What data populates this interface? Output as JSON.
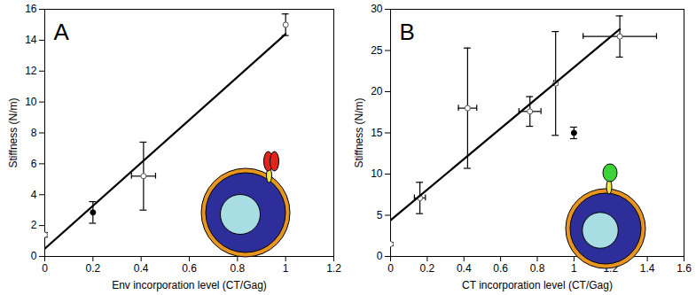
{
  "chart_data": [
    {
      "type": "scatter",
      "title": "A",
      "x_label": "Env incorporation level (CT/Gag)",
      "y_label": "Stiffness (N/m)",
      "xlim": [
        0,
        1.2
      ],
      "xticks": [
        0,
        0.2,
        0.4,
        0.6,
        0.8,
        1,
        1.2
      ],
      "ylim": [
        0,
        16
      ],
      "yticks": [
        0,
        2,
        4,
        6,
        8,
        10,
        12,
        14,
        16
      ],
      "grid": false,
      "series": [
        {
          "type": "scatter",
          "marker": "open_circle",
          "color": "#555555",
          "x": [
            0,
            0.41,
            1.0
          ],
          "y": [
            1.4,
            5.2,
            15.0
          ],
          "xerr": [
            0,
            0.05,
            0
          ],
          "yerr": [
            0.15,
            2.2,
            0.7
          ]
        },
        {
          "type": "scatter",
          "marker": "filled_circle",
          "color": "#000000",
          "x": [
            0.2
          ],
          "y": [
            2.85
          ],
          "xerr": [
            0
          ],
          "yerr": [
            0.7
          ]
        },
        {
          "type": "line",
          "color": "#000000",
          "x": [
            0,
            1.0
          ],
          "y": [
            0.5,
            14.4
          ]
        }
      ]
    },
    {
      "type": "scatter",
      "title": "B",
      "x_label": "CT incorporation level (CT/Gag)",
      "y_label": "Stiffness (N/m)",
      "xlim": [
        0,
        1.6
      ],
      "xticks": [
        0,
        0.2,
        0.4,
        0.6,
        0.8,
        1,
        1.2,
        1.4,
        1.6
      ],
      "ylim": [
        0,
        30
      ],
      "yticks": [
        0,
        5,
        10,
        15,
        20,
        25,
        30
      ],
      "grid": false,
      "series": [
        {
          "type": "scatter",
          "marker": "open_circle",
          "color": "#555555",
          "x": [
            0,
            0.16,
            0.42,
            0.76,
            0.9,
            1.25
          ],
          "y": [
            1.5,
            7.1,
            18.0,
            17.6,
            21.0,
            26.7
          ],
          "xerr": [
            0,
            0.03,
            0.05,
            0.06,
            0.01,
            0.2
          ],
          "yerr": [
            0.2,
            1.9,
            7.3,
            1.8,
            6.3,
            2.5
          ]
        },
        {
          "type": "scatter",
          "marker": "filled_circle",
          "color": "#000000",
          "x": [
            1.0
          ],
          "y": [
            15.0
          ],
          "xerr": [
            0
          ],
          "yerr": [
            0.7
          ]
        },
        {
          "type": "line",
          "color": "#000000",
          "x": [
            0,
            1.25
          ],
          "y": [
            4.4,
            27.6
          ]
        }
      ]
    }
  ]
}
